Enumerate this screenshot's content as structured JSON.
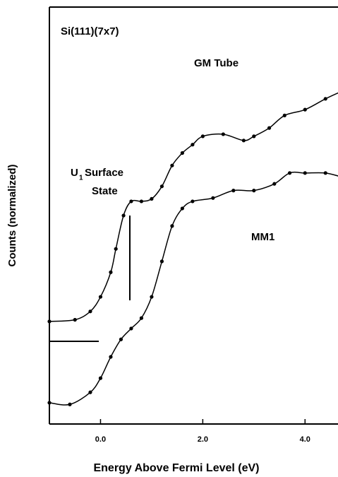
{
  "chart_data": {
    "type": "line",
    "xlabel": "Energy Above Fermi Level (eV)",
    "ylabel": "Counts (normalized)",
    "annotations": [
      "Si(111)(7x7)",
      "GM Tube",
      "U",
      "1",
      "Surface",
      "State",
      "MM1"
    ],
    "xlim": [
      -1.0,
      4.7
    ],
    "ylim": [
      0,
      100
    ],
    "xticks": [
      {
        "value": 0,
        "label": "0.0"
      },
      {
        "value": 2,
        "label": "2.0"
      },
      {
        "value": 4,
        "label": "4.0"
      }
    ],
    "series": [
      {
        "name": "GM Tube",
        "color": "#000000",
        "x": [
          -1.0,
          -0.5,
          -0.2,
          0.0,
          0.2,
          0.3,
          0.45,
          0.6,
          0.8,
          1.0,
          1.2,
          1.4,
          1.6,
          1.8,
          2.0,
          2.4,
          2.8,
          3.0,
          3.3,
          3.6,
          4.0,
          4.4,
          4.7
        ],
        "values": [
          24.6,
          25,
          27,
          30.5,
          36.4,
          42,
          50,
          53.4,
          53.4,
          54,
          57,
          62,
          65,
          67,
          69,
          69.5,
          68,
          69,
          71,
          74,
          75.4,
          78,
          79.7
        ]
      },
      {
        "name": "MM1",
        "color": "#000000",
        "x": [
          -1.0,
          -0.6,
          -0.2,
          0.0,
          0.2,
          0.4,
          0.6,
          0.8,
          1.0,
          1.2,
          1.4,
          1.6,
          1.8,
          2.2,
          2.6,
          3.0,
          3.4,
          3.7,
          4.0,
          4.4,
          4.7
        ],
        "values": [
          5.1,
          4.7,
          7.6,
          11,
          16.1,
          20.3,
          22.9,
          25.4,
          30.5,
          39,
          47.5,
          51.7,
          53.4,
          54.2,
          56,
          56,
          57.6,
          60.2,
          60.2,
          60.2,
          59.3
        ]
      }
    ]
  }
}
